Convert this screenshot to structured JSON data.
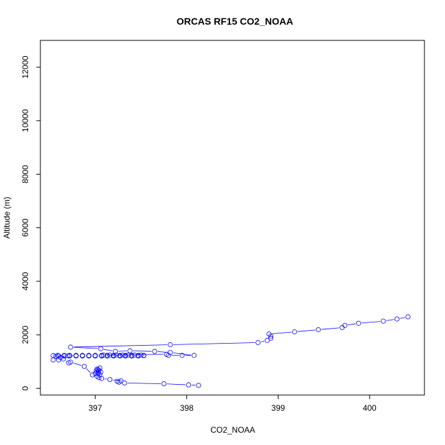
{
  "chart_data": {
    "type": "scatter",
    "title": "ORCAS RF15 CO2_NOAA",
    "xlabel": "CO2_NOAA",
    "ylabel": "Altitude (m)",
    "xlim": [
      396.4,
      400.6
    ],
    "ylim": [
      -250,
      13000
    ],
    "x_ticks": [
      397,
      398,
      399,
      400
    ],
    "x_tick_labels": [
      "397",
      "398",
      "399",
      "400"
    ],
    "y_ticks": [
      0,
      2000,
      4000,
      6000,
      8000,
      10000,
      12000
    ],
    "y_tick_labels": [
      "0",
      "2000",
      "4000",
      "6000",
      "8000",
      "10000",
      "12000"
    ],
    "grid": false,
    "series_color": "#0000ff",
    "series": [
      {
        "x": [
          398.13,
          398.02,
          397.75,
          397.32,
          397.26,
          397.24,
          397.28,
          397.16,
          397.07,
          397.04,
          397.02,
          397.05,
          397.03,
          397.06,
          397.04,
          397.02,
          397.05,
          397.03,
          397.01,
          397.03,
          397.0,
          396.97,
          396.88,
          396.73,
          396.71,
          396.65,
          396.6,
          396.54,
          396.62,
          396.57,
          396.7,
          396.79,
          396.86,
          396.93,
          397.0,
          397.07,
          397.13,
          397.2,
          397.27,
          397.33,
          397.4,
          397.47,
          397.53,
          397.47,
          397.4,
          397.33,
          397.27,
          397.2,
          397.13,
          397.07,
          397.0,
          396.93,
          396.86,
          396.79,
          396.72,
          396.66,
          396.6,
          396.54,
          396.59,
          396.66,
          396.72,
          396.79,
          396.86,
          396.93,
          397.0,
          397.07,
          397.13,
          397.2,
          397.27,
          397.33,
          397.4,
          397.47,
          397.53,
          397.5,
          397.43,
          397.36,
          397.3,
          397.23,
          397.16,
          397.09,
          397.78,
          397.8,
          397.95,
          398.08,
          397.82,
          397.65,
          397.38,
          397.22,
          397.06,
          396.73,
          397.82,
          398.78,
          398.88,
          398.92,
          398.92,
          398.9,
          399.18,
          399.44,
          399.7,
          399.73,
          399.88,
          400.15,
          400.3,
          400.42
        ],
        "y": [
          110,
          130,
          170,
          200,
          230,
          260,
          280,
          330,
          370,
          400,
          450,
          510,
          560,
          610,
          670,
          720,
          760,
          700,
          650,
          600,
          550,
          500,
          820,
          980,
          950,
          1100,
          1060,
          1060,
          1150,
          1200,
          1210,
          1220,
          1220,
          1220,
          1220,
          1220,
          1220,
          1220,
          1220,
          1220,
          1220,
          1220,
          1220,
          1210,
          1210,
          1210,
          1210,
          1210,
          1210,
          1210,
          1210,
          1210,
          1210,
          1210,
          1210,
          1210,
          1210,
          1220,
          1230,
          1230,
          1230,
          1230,
          1230,
          1230,
          1230,
          1230,
          1230,
          1230,
          1230,
          1230,
          1230,
          1230,
          1230,
          1240,
          1240,
          1240,
          1240,
          1240,
          1240,
          1240,
          1270,
          1230,
          1230,
          1230,
          1340,
          1380,
          1400,
          1380,
          1480,
          1540,
          1630,
          1710,
          1790,
          1870,
          1950,
          2030,
          2110,
          2190,
          2270,
          2350,
          2430,
          2510,
          2590,
          2670
        ]
      }
    ]
  }
}
